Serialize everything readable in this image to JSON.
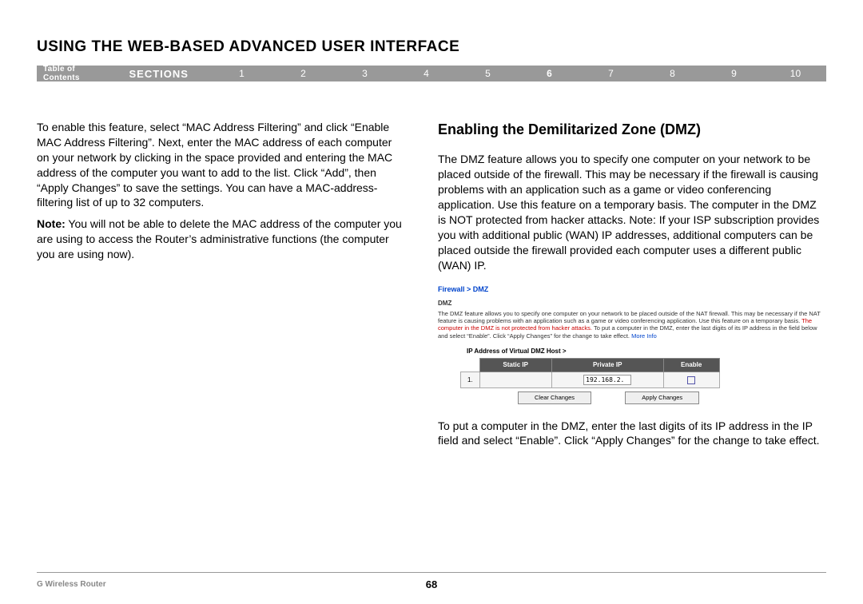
{
  "page_title": "USING THE WEB-BASED ADVANCED USER INTERFACE",
  "nav": {
    "toc": "Table of Contents",
    "sections_label": "SECTIONS",
    "numbers": [
      "1",
      "2",
      "3",
      "4",
      "5",
      "6",
      "7",
      "8",
      "9",
      "10"
    ],
    "active_index": 5
  },
  "left": {
    "p1": "To enable this feature, select “MAC Address Filtering” and click “Enable MAC Address Filtering”. Next, enter the MAC address of each computer on your network by clicking in the space provided and entering the MAC address of the computer you want to add to the list. Click “Add”, then “Apply Changes” to save the settings. You can have a MAC-address-filtering list of up to 32 computers.",
    "note_label": "Note:",
    "note_text": " You will not be able to delete the MAC address of the computer you are using to access the Router’s administrative functions (the computer you are using now)."
  },
  "right": {
    "heading": "Enabling the Demilitarized Zone (DMZ)",
    "p1": "The DMZ feature allows you to specify one computer on your network to be placed outside of the firewall. This may be necessary if the firewall is causing problems with an application such as a game or video conferencing application. Use this feature on a temporary basis. The computer in the DMZ is NOT protected from hacker attacks. Note: If your ISP subscription provides you with additional public (WAN) IP addresses, additional computers can be placed outside the firewall provided each computer uses a different public (WAN) IP.",
    "p2": "To put a computer in the DMZ, enter the last digits of its IP address in the IP field and select “Enable”. Click “Apply Changes” for the change to take effect."
  },
  "screenshot": {
    "breadcrumb": "Firewall > DMZ",
    "dmz_label": "DMZ",
    "desc_plain1": "The DMZ feature allows you to specify one computer on your network to be placed outside of the NAT firewall. This may be necessary if the NAT feature is causing problems with an application such as a game or video conferencing application. Use this feature on a temporary basis. ",
    "desc_red": "The computer in the DMZ is not protected from hacker attacks.",
    "desc_plain2": " To put a computer in the DMZ, enter the last digits of its IP address in the field below and select “Enable”. Click “Apply Changes” for the change to take effect. ",
    "desc_link": "More Info",
    "ip_label": "IP Address of Virtual DMZ Host >",
    "table": {
      "headers": {
        "static_ip": "Static IP",
        "private_ip": "Private IP",
        "enable": "Enable"
      },
      "row_num": "1.",
      "private_ip_value": "192.168.2."
    },
    "buttons": {
      "clear": "Clear Changes",
      "apply": "Apply Changes"
    }
  },
  "footer": {
    "product": "G Wireless Router",
    "page_number": "68"
  }
}
